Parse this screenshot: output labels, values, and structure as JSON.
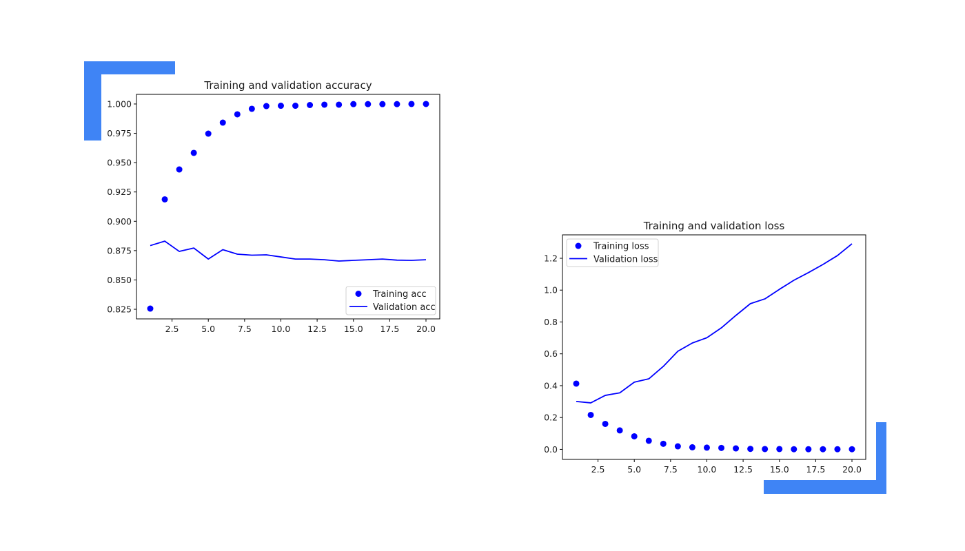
{
  "decoration": {
    "accent_color": "#3f84f5"
  },
  "chart_data": [
    {
      "type": "scatter+line",
      "title": "Training and validation accuracy",
      "xlabel": "",
      "ylabel": "",
      "xlim": [
        0.05,
        20.95
      ],
      "ylim": [
        0.8168,
        1.0082
      ],
      "grid": false,
      "legend_position": "lower-right",
      "xticks": [
        2.5,
        5.0,
        7.5,
        10.0,
        12.5,
        15.0,
        17.5,
        20.0
      ],
      "xtick_labels": [
        "2.5",
        "5.0",
        "7.5",
        "10.0",
        "12.5",
        "15.0",
        "17.5",
        "20.0"
      ],
      "yticks": [
        0.825,
        0.85,
        0.875,
        0.9,
        0.925,
        0.95,
        0.975,
        1.0
      ],
      "ytick_labels": [
        "0.825",
        "0.850",
        "0.875",
        "0.900",
        "0.925",
        "0.950",
        "0.975",
        "1.000"
      ],
      "x": [
        1,
        2,
        3,
        4,
        5,
        6,
        7,
        8,
        9,
        10,
        11,
        12,
        13,
        14,
        15,
        16,
        17,
        18,
        19,
        20
      ],
      "series": [
        {
          "name": "Training acc",
          "style": "dots",
          "color": "#0000ff",
          "values": [
            0.8256,
            0.9187,
            0.9442,
            0.9583,
            0.9747,
            0.9841,
            0.9912,
            0.9959,
            0.9982,
            0.9985,
            0.9985,
            0.9991,
            0.9994,
            0.9994,
            0.9999,
            0.9999,
            0.9999,
            0.9999,
            1.0,
            1.0
          ]
        },
        {
          "name": "Validation acc",
          "style": "line",
          "color": "#0000ff",
          "values": [
            0.8793,
            0.8831,
            0.8743,
            0.8772,
            0.8678,
            0.8758,
            0.872,
            0.8711,
            0.8714,
            0.8696,
            0.8678,
            0.8678,
            0.8672,
            0.8661,
            0.8667,
            0.8672,
            0.8678,
            0.8669,
            0.8667,
            0.8672
          ]
        }
      ]
    },
    {
      "type": "scatter+line",
      "title": "Training and validation loss",
      "xlabel": "",
      "ylabel": "",
      "xlim": [
        0.05,
        20.95
      ],
      "ylim": [
        -0.063,
        1.347
      ],
      "grid": false,
      "legend_position": "upper-left",
      "xticks": [
        2.5,
        5.0,
        7.5,
        10.0,
        12.5,
        15.0,
        17.5,
        20.0
      ],
      "xtick_labels": [
        "2.5",
        "5.0",
        "7.5",
        "10.0",
        "12.5",
        "15.0",
        "17.5",
        "20.0"
      ],
      "yticks": [
        0.0,
        0.2,
        0.4,
        0.6,
        0.8,
        1.0,
        1.2
      ],
      "ytick_labels": [
        "0.0",
        "0.2",
        "0.4",
        "0.6",
        "0.8",
        "1.0",
        "1.2"
      ],
      "x": [
        1,
        2,
        3,
        4,
        5,
        6,
        7,
        8,
        9,
        10,
        11,
        12,
        13,
        14,
        15,
        16,
        17,
        18,
        19,
        20
      ],
      "series": [
        {
          "name": "Training loss",
          "style": "dots",
          "color": "#0000ff",
          "values": [
            0.413,
            0.216,
            0.16,
            0.119,
            0.082,
            0.054,
            0.035,
            0.019,
            0.013,
            0.011,
            0.009,
            0.006,
            0.003,
            0.002,
            0.002,
            0.001,
            0.001,
            0.001,
            0.001,
            0.001
          ]
        },
        {
          "name": "Validation loss",
          "style": "line",
          "color": "#0000ff",
          "values": [
            0.301,
            0.292,
            0.339,
            0.355,
            0.422,
            0.443,
            0.521,
            0.616,
            0.668,
            0.701,
            0.763,
            0.841,
            0.915,
            0.945,
            1.005,
            1.062,
            1.11,
            1.161,
            1.217,
            1.291
          ]
        }
      ]
    }
  ]
}
